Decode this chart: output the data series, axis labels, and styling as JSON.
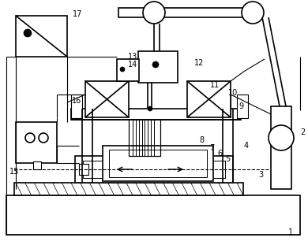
{
  "background_color": "#ffffff",
  "line_color": "#000000",
  "lw": 1.2,
  "tlw": 0.8,
  "figsize": [
    3.9,
    3.06
  ],
  "dpi": 100
}
